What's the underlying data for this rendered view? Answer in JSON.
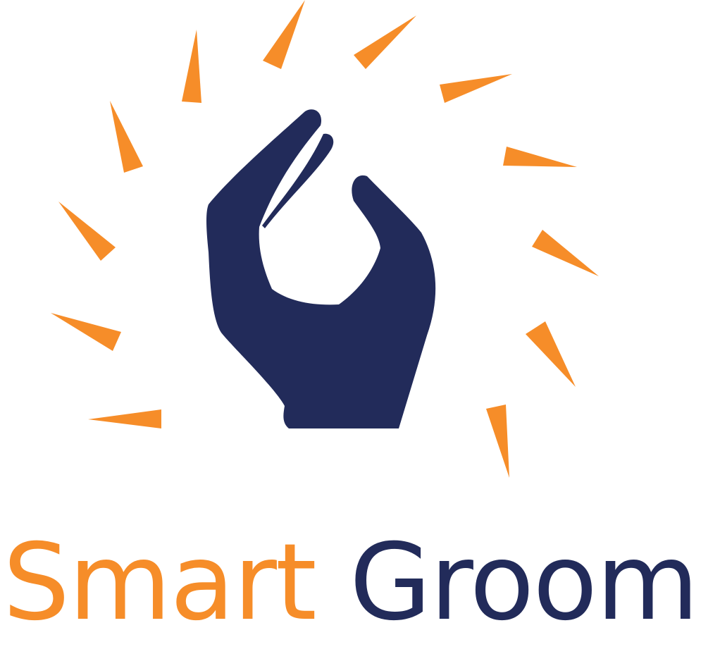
{
  "logo": {
    "brand_word_1": "Smart",
    "brand_word_2": "Groom",
    "icon": "hand-snap-icon",
    "rays_icon": "burst-rays-icon"
  },
  "colors": {
    "accent": "#F68D29",
    "brand": "#222B5A",
    "background": "#FFFFFF"
  }
}
